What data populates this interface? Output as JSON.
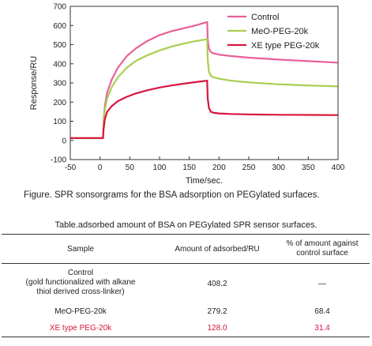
{
  "chart_data": {
    "type": "line",
    "title": "",
    "xlabel": "Time/sec.",
    "ylabel": "Response/RU",
    "xlim": [
      -50,
      400
    ],
    "ylim": [
      -100,
      700
    ],
    "x_ticks": [
      -50,
      0,
      50,
      100,
      150,
      200,
      250,
      300,
      350,
      400
    ],
    "y_ticks": [
      -100,
      0,
      100,
      200,
      300,
      400,
      500,
      600,
      700
    ],
    "grid": false,
    "legend_position": "top-right",
    "series": [
      {
        "name": "Control",
        "color": "#e8609a",
        "x": [
          -50,
          5,
          6,
          8,
          12,
          20,
          30,
          45,
          60,
          80,
          100,
          120,
          140,
          160,
          180,
          181,
          183,
          186,
          190,
          200,
          220,
          250,
          300,
          350,
          400
        ],
        "y": [
          12,
          12,
          100,
          180,
          250,
          320,
          380,
          440,
          480,
          520,
          550,
          570,
          585,
          600,
          618,
          530,
          480,
          462,
          455,
          448,
          440,
          432,
          422,
          414,
          406
        ]
      },
      {
        "name": "MeO-PEG-20k",
        "color": "#a8cf4e",
        "x": [
          -50,
          5,
          6,
          8,
          12,
          20,
          30,
          45,
          60,
          80,
          100,
          120,
          140,
          160,
          180,
          181,
          183,
          186,
          190,
          200,
          220,
          250,
          300,
          350,
          400
        ],
        "y": [
          12,
          12,
          90,
          160,
          220,
          280,
          330,
          380,
          415,
          445,
          470,
          490,
          505,
          518,
          528,
          420,
          360,
          338,
          330,
          322,
          312,
          303,
          293,
          287,
          282
        ]
      },
      {
        "name": "XE type PEG-20k",
        "color": "#d6163d",
        "x": [
          -50,
          5,
          6,
          8,
          12,
          20,
          30,
          45,
          60,
          80,
          100,
          120,
          140,
          160,
          180,
          181,
          183,
          186,
          190,
          200,
          220,
          250,
          300,
          350,
          400
        ],
        "y": [
          12,
          12,
          60,
          110,
          150,
          180,
          205,
          228,
          245,
          262,
          276,
          287,
          296,
          304,
          312,
          220,
          170,
          150,
          145,
          141,
          138,
          136,
          134,
          133,
          132
        ]
      }
    ]
  },
  "figure_caption": "Figure. SPR sonsorgrams for the BSA adsorption on PEGylated surfaces.",
  "table": {
    "caption": "Table.adsorbed amount of BSA on PEGylated SPR sensor surfaces.",
    "headers": {
      "sample": "Sample",
      "amount": "Amount of adsorbed/RU",
      "percent_line1": "% of amount against",
      "percent_line2": "control surface"
    },
    "rows": [
      {
        "sample_line1": "Control",
        "sample_line2": "(gold functionalized with alkane",
        "sample_line3": "thiol derived cross-linker)",
        "amount": "408.2",
        "percent": "—"
      },
      {
        "sample": "MeO-PEG-20k",
        "amount": "279.2",
        "percent": "68.4"
      },
      {
        "sample": "XE type PEG-20k",
        "amount": "128.0",
        "percent": "31.4",
        "color": "#d6163d"
      }
    ]
  }
}
